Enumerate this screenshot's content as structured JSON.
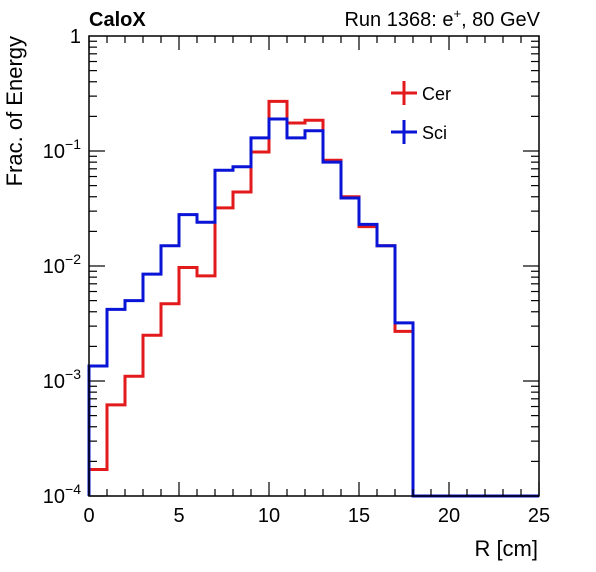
{
  "header": {
    "experiment": "CaloX",
    "run_info_prefix": "Run 1368: e",
    "run_info_sup": "+",
    "run_info_suffix": ", 80 GeV"
  },
  "chart_data": {
    "type": "line",
    "style": "step-histogram",
    "title": "",
    "xlabel": "R [cm]",
    "ylabel": "Frac. of Energy",
    "xlim": [
      0,
      25
    ],
    "ylim": [
      0.0001,
      1
    ],
    "yscale": "log",
    "grid": false,
    "legend_position": "top-right",
    "bin_edges": [
      0,
      1,
      2,
      3,
      4,
      5,
      6,
      7,
      8,
      9,
      10,
      11,
      12,
      13,
      14,
      15,
      16,
      17,
      18,
      19,
      20,
      21,
      22,
      23,
      24,
      25
    ],
    "x_ticks": [
      0,
      5,
      10,
      15,
      20,
      25
    ],
    "x_tick_labels": [
      "0",
      "5",
      "10",
      "15",
      "20",
      "25"
    ],
    "y_ticks": [
      0.0001,
      0.001,
      0.01,
      0.1,
      1
    ],
    "y_tick_labels": [
      {
        "base": "10",
        "exp": "−4"
      },
      {
        "base": "10",
        "exp": "−3"
      },
      {
        "base": "10",
        "exp": "−2"
      },
      {
        "base": "10",
        "exp": "−1"
      },
      {
        "base": "1",
        "exp": ""
      }
    ],
    "series": [
      {
        "name": "Cer",
        "color": "#e31a1c",
        "values": [
          0.00017,
          0.00062,
          0.0011,
          0.0025,
          0.0047,
          0.0097,
          0.0082,
          0.032,
          0.044,
          0.098,
          0.27,
          0.175,
          0.185,
          0.083,
          0.04,
          0.022,
          0.015,
          0.0027,
          0,
          0,
          0,
          0,
          0,
          0,
          0
        ]
      },
      {
        "name": "Sci",
        "color": "#0a14d6",
        "values": [
          0.00135,
          0.0042,
          0.005,
          0.0085,
          0.015,
          0.028,
          0.024,
          0.068,
          0.073,
          0.13,
          0.19,
          0.13,
          0.15,
          0.08,
          0.039,
          0.023,
          0.015,
          0.0032,
          0,
          0,
          0,
          0,
          0,
          0,
          0
        ]
      }
    ]
  }
}
